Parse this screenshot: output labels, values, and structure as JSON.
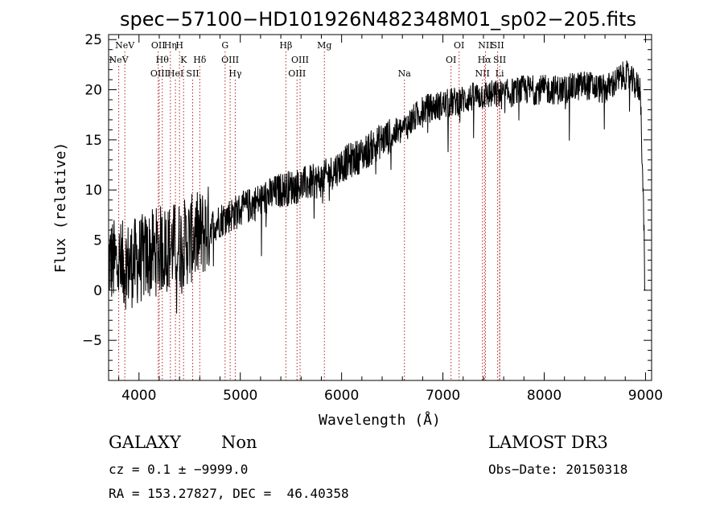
{
  "chart_data": {
    "type": "line",
    "title": "spec−57100−HD101926N482348M01_sp02−205.fits",
    "xlabel": "Wavelength (Å)",
    "ylabel": "Flux (relative)",
    "xlim": [
      3700,
      9060
    ],
    "ylim": [
      -9,
      25.5
    ],
    "xticks": [
      4000,
      5000,
      6000,
      7000,
      8000,
      9000
    ],
    "xtick_labels": [
      "4000",
      "5000",
      "6000",
      "7000",
      "8000",
      "9000"
    ],
    "yticks": [
      -5,
      0,
      5,
      10,
      15,
      20,
      25
    ],
    "ytick_labels": [
      "−5",
      "0",
      "5",
      "10",
      "15",
      "20",
      "25"
    ],
    "spectrum_trend": [
      {
        "x": 3700,
        "y": 3.0
      },
      {
        "x": 3800,
        "y": 2.5
      },
      {
        "x": 3900,
        "y": 2.5
      },
      {
        "x": 4000,
        "y": 3.0
      },
      {
        "x": 4200,
        "y": 4.0
      },
      {
        "x": 4400,
        "y": 4.5
      },
      {
        "x": 4600,
        "y": 5.5
      },
      {
        "x": 4800,
        "y": 7.0
      },
      {
        "x": 5000,
        "y": 8.0
      },
      {
        "x": 5200,
        "y": 9.0
      },
      {
        "x": 5400,
        "y": 10.0
      },
      {
        "x": 5600,
        "y": 10.5
      },
      {
        "x": 5800,
        "y": 11.0
      },
      {
        "x": 6000,
        "y": 12.5
      },
      {
        "x": 6200,
        "y": 13.5
      },
      {
        "x": 6400,
        "y": 15.0
      },
      {
        "x": 6600,
        "y": 16.0
      },
      {
        "x": 6800,
        "y": 18.0
      },
      {
        "x": 7000,
        "y": 18.5
      },
      {
        "x": 7200,
        "y": 19.0
      },
      {
        "x": 7400,
        "y": 19.5
      },
      {
        "x": 7600,
        "y": 19.5
      },
      {
        "x": 7800,
        "y": 20.0
      },
      {
        "x": 8000,
        "y": 20.0
      },
      {
        "x": 8200,
        "y": 20.0
      },
      {
        "x": 8400,
        "y": 20.5
      },
      {
        "x": 8600,
        "y": 20.0
      },
      {
        "x": 8800,
        "y": 21.5
      },
      {
        "x": 8950,
        "y": 20.0
      },
      {
        "x": 9000,
        "y": 0.0
      }
    ],
    "spectral_lines": [
      {
        "label": "NeV",
        "x": 3800,
        "row": 1
      },
      {
        "label": "NeV",
        "x": 3860,
        "row": 0
      },
      {
        "label": "OII",
        "x": 4190,
        "row": 0
      },
      {
        "label": "OIII",
        "x": 4200,
        "row": 2
      },
      {
        "label": "Hθ",
        "x": 4230,
        "row": 1
      },
      {
        "label": "Hη",
        "x": 4310,
        "row": 0
      },
      {
        "label": "HeI",
        "x": 4360,
        "row": 2
      },
      {
        "label": "H",
        "x": 4400,
        "row": 0
      },
      {
        "label": "K",
        "x": 4440,
        "row": 1
      },
      {
        "label": "SII",
        "x": 4530,
        "row": 2
      },
      {
        "label": "Hδ",
        "x": 4600,
        "row": 1
      },
      {
        "label": "G",
        "x": 4850,
        "row": 0
      },
      {
        "label": "OIII",
        "x": 4900,
        "row": 1
      },
      {
        "label": "Hγ",
        "x": 4950,
        "row": 2
      },
      {
        "label": "Hβ",
        "x": 5450,
        "row": 0
      },
      {
        "label": "OIII",
        "x": 5590,
        "row": 1
      },
      {
        "label": "OIII",
        "x": 5560,
        "row": 2
      },
      {
        "label": "Mg",
        "x": 5830,
        "row": 0
      },
      {
        "label": "Na",
        "x": 6620,
        "row": 2
      },
      {
        "label": "OI",
        "x": 7080,
        "row": 1
      },
      {
        "label": "OI",
        "x": 7160,
        "row": 0
      },
      {
        "label": "NII",
        "x": 7390,
        "row": 2
      },
      {
        "label": "Hα",
        "x": 7410,
        "row": 1
      },
      {
        "label": "NII",
        "x": 7420,
        "row": 0
      },
      {
        "label": "SII",
        "x": 7540,
        "row": 0
      },
      {
        "label": "SII",
        "x": 7560,
        "row": 1
      },
      {
        "label": "Li",
        "x": 7560,
        "row": 2
      }
    ]
  },
  "info": {
    "class_label": "GALAXY",
    "subclass_label": "Non",
    "survey": "LAMOST DR3",
    "cz": "cz = 0.1 ± −9999.0",
    "obs_date": "Obs−Date: 20150318",
    "coords": "RA = 153.27827, DEC =  46.40358"
  }
}
